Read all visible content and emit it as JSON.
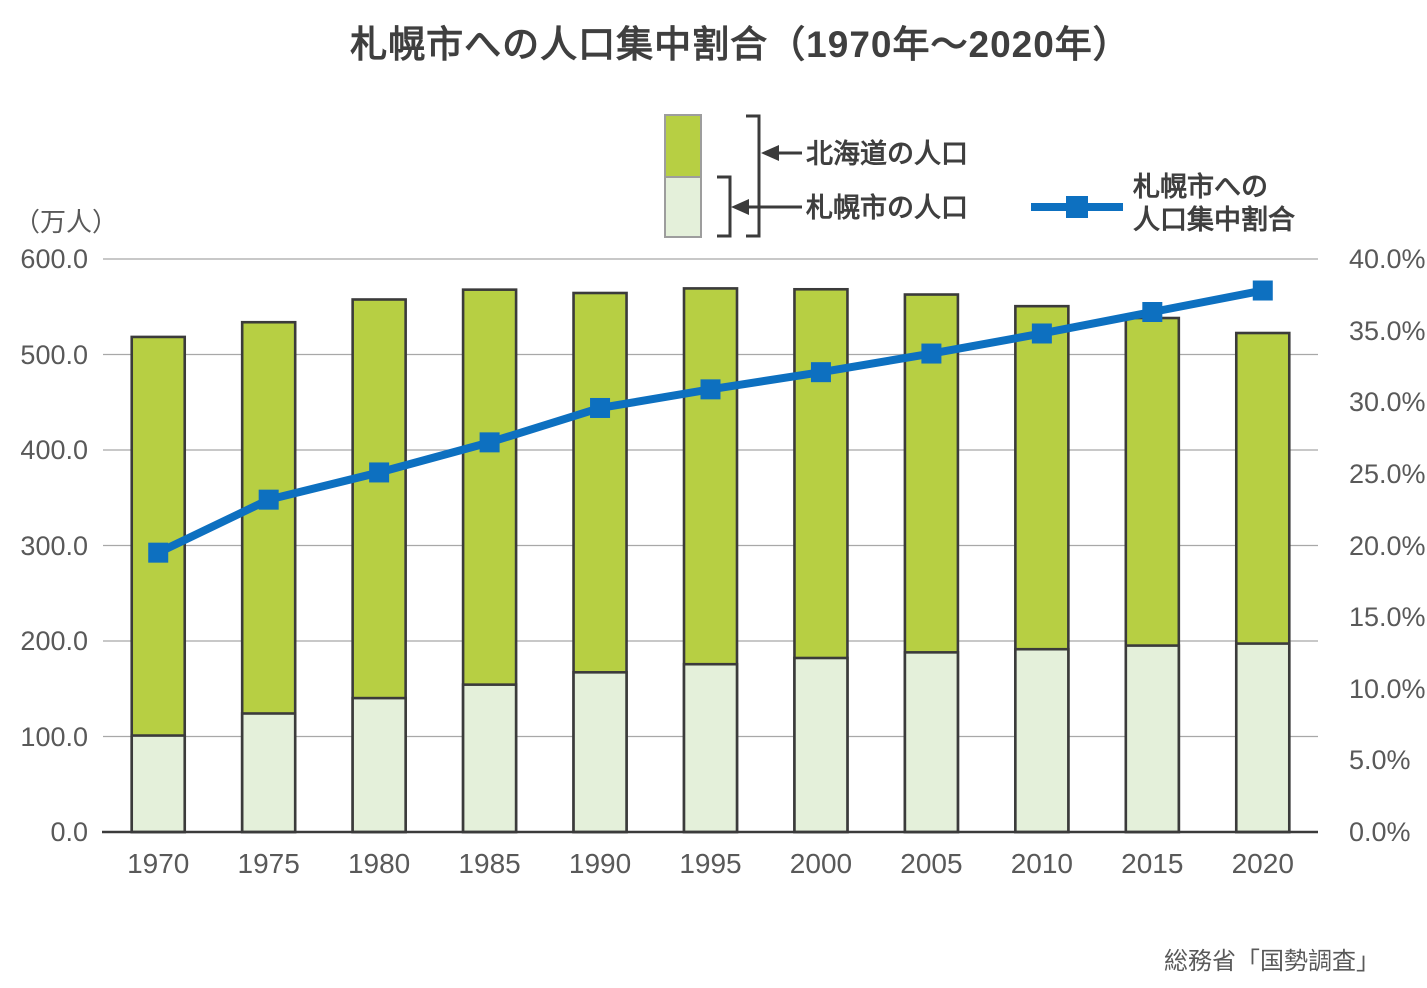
{
  "title": "札幌市への人口集中割合（1970年〜2020年）",
  "source": "総務省「国勢調査」",
  "axes": {
    "left_unit_label": "（万人）",
    "left_ticks": [
      "600.0",
      "500.0",
      "400.0",
      "300.0",
      "200.0",
      "100.0",
      "0.0"
    ],
    "right_ticks": [
      "40.0%",
      "35.0%",
      "30.0%",
      "25.0%",
      "20.0%",
      "15.0%",
      "10.0%",
      "5.0%",
      "0.0%"
    ],
    "x_ticks": [
      "1970",
      "1975",
      "1980",
      "1985",
      "1990",
      "1995",
      "2000",
      "2005",
      "2010",
      "2015",
      "2020"
    ]
  },
  "legend": {
    "hokkaido_label": "北海道の人口",
    "sapporo_label": "札幌市の人口",
    "ratio_label_line1": "札幌市への",
    "ratio_label_line2": "人口集中割合"
  },
  "colors": {
    "hokkaido_bar": "#b7cf43",
    "sapporo_bar": "#e4f0da",
    "bar_outline": "#3b3b3b",
    "ratio_line": "#0d70c0",
    "gridline": "#a8a8a8",
    "legend_sample_outline": "#9d9d9d",
    "axis_text": "#595959",
    "title_text": "#3f3f3f"
  },
  "chart_data": {
    "type": "bar",
    "subtype": "stacked-bar-with-line-combo",
    "title": "札幌市への人口集中割合（1970年〜2020年）",
    "categories": [
      1970,
      1975,
      1980,
      1985,
      1990,
      1995,
      2000,
      2005,
      2010,
      2015,
      2020
    ],
    "series": [
      {
        "name": "北海道の人口",
        "type": "bar_total_height",
        "axis": "left",
        "unit": "万人",
        "values": [
          518.4,
          533.8,
          557.6,
          567.9,
          564.4,
          569.2,
          568.3,
          562.8,
          550.6,
          538.2,
          522.5
        ]
      },
      {
        "name": "札幌市の人口",
        "type": "bar_bottom_segment",
        "axis": "left",
        "unit": "万人",
        "values": [
          101.0,
          124.1,
          140.2,
          154.3,
          167.2,
          175.7,
          182.2,
          188.1,
          191.4,
          195.2,
          197.3
        ]
      },
      {
        "name": "札幌市への人口集中割合",
        "type": "line",
        "marker": "square",
        "axis": "right",
        "unit": "%",
        "values": [
          19.5,
          23.2,
          25.1,
          27.2,
          29.6,
          30.9,
          32.1,
          33.4,
          34.8,
          36.3,
          37.8
        ]
      }
    ],
    "left_ylabel": "（万人）",
    "left_ylim": [
      0,
      600
    ],
    "left_tick_step": 100,
    "right_ylim": [
      0,
      40
    ],
    "right_tick_step": 5,
    "grid": "horizontal gridlines at left-axis 100-unit intervals",
    "legend_position": "top-center",
    "source_note": "総務省「国勢調査」"
  }
}
